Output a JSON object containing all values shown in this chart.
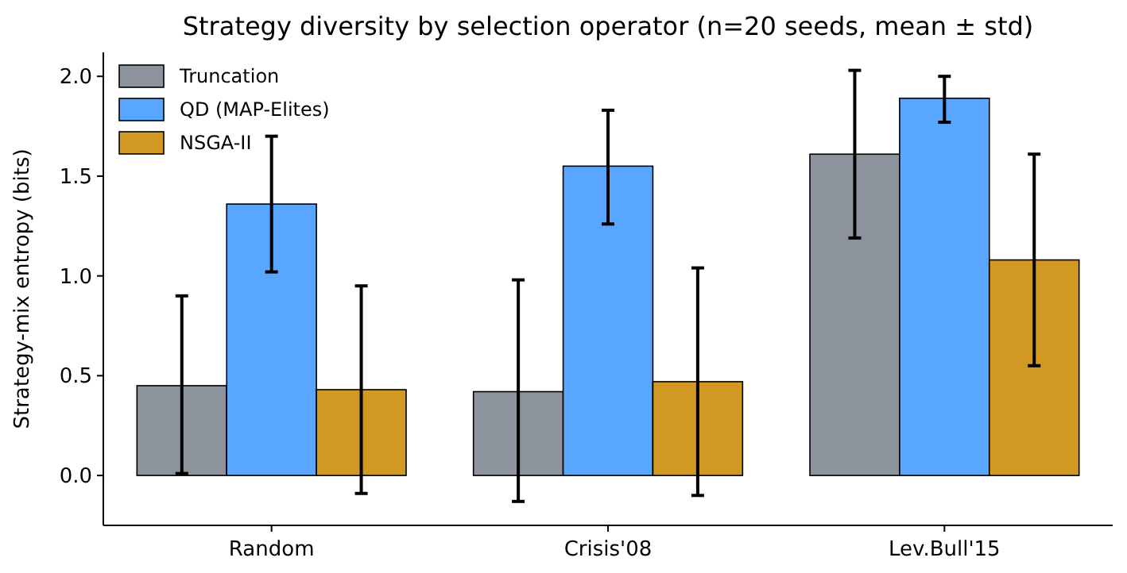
{
  "chart_data": {
    "type": "bar",
    "title": "Strategy diversity by selection operator (n=20 seeds, mean ± std)",
    "ylabel": "Strategy-mix entropy (bits)",
    "categories": [
      "Random",
      "Crisis'08",
      "Lev.Bull'15"
    ],
    "series": [
      {
        "name": "Truncation",
        "color": "#8c939c",
        "values": [
          0.45,
          0.42,
          1.61
        ],
        "errors": [
          [
            0.01,
            0.9
          ],
          [
            -0.13,
            0.98
          ],
          [
            1.19,
            2.03
          ]
        ]
      },
      {
        "name": "QD (MAP-Elites)",
        "color": "#58a6ff",
        "values": [
          1.36,
          1.55,
          1.89
        ],
        "errors": [
          [
            1.02,
            1.7
          ],
          [
            1.26,
            1.83
          ],
          [
            1.77,
            2.0
          ]
        ]
      },
      {
        "name": "NSGA-II",
        "color": "#d29922",
        "values": [
          0.43,
          0.47,
          1.08
        ],
        "errors": [
          [
            -0.09,
            0.95
          ],
          [
            -0.1,
            1.04
          ],
          [
            0.55,
            1.61
          ]
        ]
      }
    ],
    "ylim": [
      -0.25,
      2.12
    ],
    "yticks": [
      {
        "value": 0,
        "label": "0.0"
      },
      {
        "value": 0.5,
        "label": "0.5"
      },
      {
        "value": 1,
        "label": "1.0"
      },
      {
        "value": 1.5,
        "label": "1.5"
      },
      {
        "value": 2,
        "label": "2.0"
      }
    ],
    "legend": "top left",
    "grid": false
  }
}
